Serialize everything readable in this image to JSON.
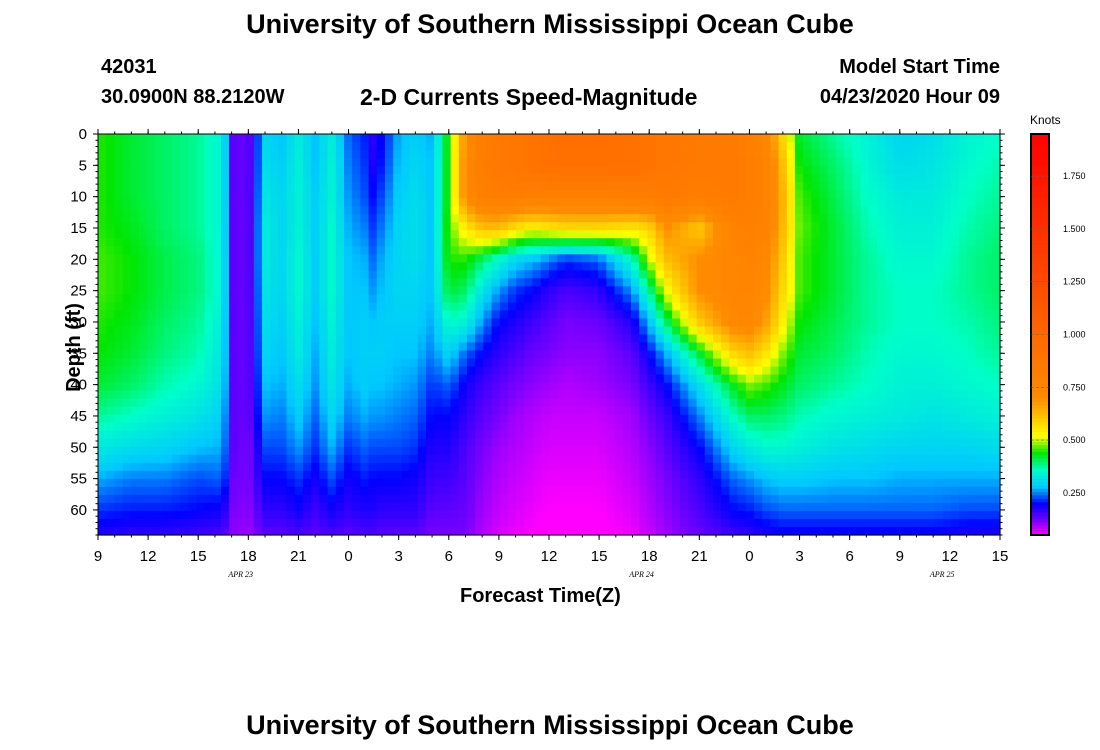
{
  "page": {
    "title_top": "University of Southern Mississippi Ocean Cube",
    "title_bottom": "University of Southern Mississippi Ocean Cube",
    "station_id": "42031",
    "location": "30.0900N 88.2120W",
    "subtitle": "2-D Currents Speed-Magnitude",
    "model_start_label": "Model Start Time",
    "model_start_value": "04/23/2020 Hour 09"
  },
  "chart_data": {
    "type": "heatmap",
    "title": "2-D Currents Speed-Magnitude",
    "xlabel": "Forecast Time(Z)",
    "ylabel": "Depth (ft)",
    "x_tick_labels": [
      "9",
      "12",
      "15",
      "18",
      "21",
      "0",
      "3",
      "6",
      "9",
      "12",
      "15",
      "18",
      "21",
      "0",
      "3",
      "6",
      "9",
      "12",
      "15"
    ],
    "x_date_labels": [
      {
        "label": "APR  23",
        "tick_index": 3
      },
      {
        "label": "APR  24",
        "tick_index": 11
      },
      {
        "label": "APR  25",
        "tick_index": 17
      }
    ],
    "y_tick_labels": [
      "0",
      "5",
      "10",
      "15",
      "20",
      "25",
      "30",
      "35",
      "40",
      "45",
      "50",
      "55",
      "60"
    ],
    "ylim": [
      0,
      64
    ],
    "xlim_hours": [
      0,
      54
    ],
    "colorbar": {
      "title": "Knots",
      "ticks": [
        "0.250",
        "0.500",
        "0.750",
        "1.000",
        "1.250",
        "1.500",
        "1.750"
      ],
      "range": [
        0.05,
        1.95
      ]
    },
    "profile_hours": [
      0,
      2,
      4,
      6,
      7.5,
      8,
      9,
      10,
      11,
      12,
      13,
      14,
      15,
      16,
      16.5,
      17,
      18,
      19,
      20,
      21,
      22,
      23,
      24,
      25,
      26,
      27,
      28,
      30,
      32,
      33,
      34,
      36,
      38,
      39,
      40,
      41,
      42,
      44,
      46,
      48,
      50,
      52,
      54
    ],
    "profile_depths": [
      0,
      5,
      10,
      15,
      20,
      25,
      30,
      35,
      40,
      45,
      50,
      55,
      60,
      64
    ],
    "speed_knots": [
      [
        0.45,
        0.45,
        0.45,
        0.45,
        0.46,
        0.46,
        0.45,
        0.44,
        0.42,
        0.38,
        0.33,
        0.27,
        0.22,
        0.18
      ],
      [
        0.42,
        0.42,
        0.42,
        0.43,
        0.44,
        0.44,
        0.43,
        0.42,
        0.4,
        0.36,
        0.31,
        0.25,
        0.21,
        0.17
      ],
      [
        0.4,
        0.4,
        0.4,
        0.4,
        0.41,
        0.41,
        0.4,
        0.39,
        0.37,
        0.34,
        0.3,
        0.25,
        0.21,
        0.17
      ],
      [
        0.38,
        0.38,
        0.38,
        0.38,
        0.39,
        0.39,
        0.38,
        0.37,
        0.35,
        0.32,
        0.28,
        0.23,
        0.2,
        0.16
      ],
      [
        0.34,
        0.34,
        0.34,
        0.34,
        0.34,
        0.34,
        0.33,
        0.32,
        0.31,
        0.29,
        0.27,
        0.24,
        0.19,
        0.15
      ],
      [
        0.14,
        0.14,
        0.14,
        0.14,
        0.14,
        0.14,
        0.14,
        0.14,
        0.14,
        0.14,
        0.14,
        0.13,
        0.12,
        0.11
      ],
      [
        0.13,
        0.13,
        0.13,
        0.13,
        0.13,
        0.13,
        0.13,
        0.13,
        0.13,
        0.13,
        0.12,
        0.12,
        0.11,
        0.1
      ],
      [
        0.3,
        0.31,
        0.32,
        0.33,
        0.33,
        0.32,
        0.31,
        0.3,
        0.28,
        0.26,
        0.23,
        0.2,
        0.17,
        0.14
      ],
      [
        0.28,
        0.29,
        0.3,
        0.3,
        0.3,
        0.3,
        0.29,
        0.28,
        0.27,
        0.25,
        0.23,
        0.2,
        0.17,
        0.14
      ],
      [
        0.33,
        0.34,
        0.34,
        0.34,
        0.35,
        0.35,
        0.34,
        0.33,
        0.31,
        0.29,
        0.26,
        0.22,
        0.19,
        0.15
      ],
      [
        0.28,
        0.28,
        0.29,
        0.29,
        0.29,
        0.29,
        0.28,
        0.27,
        0.26,
        0.24,
        0.22,
        0.19,
        0.16,
        0.14
      ],
      [
        0.33,
        0.34,
        0.34,
        0.35,
        0.35,
        0.35,
        0.34,
        0.33,
        0.32,
        0.3,
        0.27,
        0.23,
        0.19,
        0.15
      ],
      [
        0.24,
        0.25,
        0.26,
        0.27,
        0.28,
        0.28,
        0.28,
        0.28,
        0.27,
        0.25,
        0.22,
        0.19,
        0.17,
        0.14
      ],
      [
        0.21,
        0.22,
        0.23,
        0.25,
        0.27,
        0.28,
        0.29,
        0.29,
        0.29,
        0.27,
        0.24,
        0.21,
        0.18,
        0.15
      ],
      [
        0.17,
        0.18,
        0.2,
        0.22,
        0.24,
        0.26,
        0.28,
        0.29,
        0.28,
        0.26,
        0.23,
        0.2,
        0.18,
        0.15
      ],
      [
        0.2,
        0.21,
        0.23,
        0.25,
        0.27,
        0.28,
        0.29,
        0.29,
        0.28,
        0.26,
        0.23,
        0.2,
        0.17,
        0.14
      ],
      [
        0.27,
        0.28,
        0.29,
        0.3,
        0.3,
        0.3,
        0.29,
        0.28,
        0.27,
        0.25,
        0.23,
        0.2,
        0.17,
        0.14
      ],
      [
        0.29,
        0.3,
        0.31,
        0.31,
        0.31,
        0.3,
        0.29,
        0.28,
        0.26,
        0.24,
        0.22,
        0.19,
        0.17,
        0.14
      ],
      [
        0.27,
        0.28,
        0.28,
        0.28,
        0.28,
        0.28,
        0.27,
        0.25,
        0.22,
        0.2,
        0.18,
        0.16,
        0.14,
        0.12
      ],
      [
        0.45,
        0.45,
        0.45,
        0.46,
        0.45,
        0.42,
        0.36,
        0.3,
        0.24,
        0.2,
        0.18,
        0.16,
        0.14,
        0.12
      ],
      [
        0.7,
        0.72,
        0.72,
        0.55,
        0.45,
        0.4,
        0.34,
        0.24,
        0.19,
        0.17,
        0.15,
        0.14,
        0.13,
        0.12
      ],
      [
        0.82,
        0.83,
        0.8,
        0.62,
        0.4,
        0.32,
        0.26,
        0.2,
        0.16,
        0.14,
        0.12,
        0.11,
        0.1,
        0.09
      ],
      [
        0.85,
        0.86,
        0.82,
        0.62,
        0.35,
        0.26,
        0.2,
        0.17,
        0.14,
        0.12,
        0.1,
        0.09,
        0.08,
        0.07
      ],
      [
        0.88,
        0.88,
        0.82,
        0.57,
        0.3,
        0.22,
        0.18,
        0.15,
        0.12,
        0.1,
        0.09,
        0.08,
        0.07,
        0.06
      ],
      [
        0.9,
        0.9,
        0.8,
        0.54,
        0.28,
        0.2,
        0.16,
        0.13,
        0.11,
        0.09,
        0.08,
        0.07,
        0.06,
        0.05
      ],
      [
        0.93,
        0.92,
        0.8,
        0.56,
        0.25,
        0.17,
        0.14,
        0.12,
        0.1,
        0.08,
        0.07,
        0.06,
        0.05,
        0.04
      ],
      [
        0.95,
        0.93,
        0.8,
        0.58,
        0.22,
        0.15,
        0.12,
        0.11,
        0.09,
        0.08,
        0.07,
        0.06,
        0.05,
        0.04
      ],
      [
        0.95,
        0.93,
        0.8,
        0.58,
        0.24,
        0.17,
        0.13,
        0.11,
        0.1,
        0.08,
        0.07,
        0.06,
        0.05,
        0.04
      ],
      [
        0.93,
        0.92,
        0.82,
        0.56,
        0.36,
        0.26,
        0.18,
        0.14,
        0.12,
        0.1,
        0.09,
        0.08,
        0.07,
        0.06
      ],
      [
        0.9,
        0.9,
        0.82,
        0.58,
        0.5,
        0.38,
        0.28,
        0.2,
        0.16,
        0.13,
        0.11,
        0.1,
        0.09,
        0.08
      ],
      [
        0.88,
        0.88,
        0.85,
        0.7,
        0.62,
        0.52,
        0.4,
        0.27,
        0.2,
        0.16,
        0.14,
        0.12,
        0.11,
        0.1
      ],
      [
        0.85,
        0.85,
        0.82,
        0.6,
        0.7,
        0.7,
        0.6,
        0.42,
        0.31,
        0.25,
        0.2,
        0.17,
        0.15,
        0.13
      ],
      [
        0.84,
        0.85,
        0.85,
        0.78,
        0.75,
        0.75,
        0.73,
        0.58,
        0.43,
        0.36,
        0.3,
        0.24,
        0.2,
        0.16
      ],
      [
        0.8,
        0.82,
        0.82,
        0.8,
        0.78,
        0.76,
        0.74,
        0.62,
        0.48,
        0.4,
        0.33,
        0.26,
        0.21,
        0.17
      ],
      [
        0.75,
        0.78,
        0.78,
        0.77,
        0.74,
        0.71,
        0.67,
        0.56,
        0.46,
        0.4,
        0.35,
        0.28,
        0.23,
        0.18
      ],
      [
        0.58,
        0.62,
        0.64,
        0.63,
        0.6,
        0.58,
        0.54,
        0.48,
        0.43,
        0.39,
        0.35,
        0.29,
        0.24,
        0.19
      ],
      [
        0.42,
        0.44,
        0.46,
        0.47,
        0.46,
        0.46,
        0.44,
        0.42,
        0.4,
        0.37,
        0.34,
        0.29,
        0.24,
        0.19
      ],
      [
        0.38,
        0.4,
        0.41,
        0.42,
        0.42,
        0.42,
        0.41,
        0.4,
        0.38,
        0.35,
        0.32,
        0.28,
        0.24,
        0.19
      ],
      [
        0.34,
        0.35,
        0.36,
        0.37,
        0.38,
        0.38,
        0.38,
        0.37,
        0.36,
        0.34,
        0.31,
        0.28,
        0.24,
        0.19
      ],
      [
        0.3,
        0.31,
        0.33,
        0.34,
        0.35,
        0.36,
        0.36,
        0.35,
        0.34,
        0.33,
        0.3,
        0.27,
        0.24,
        0.19
      ],
      [
        0.31,
        0.32,
        0.33,
        0.34,
        0.35,
        0.36,
        0.36,
        0.35,
        0.34,
        0.32,
        0.3,
        0.27,
        0.24,
        0.19
      ],
      [
        0.34,
        0.35,
        0.36,
        0.37,
        0.38,
        0.38,
        0.37,
        0.36,
        0.35,
        0.33,
        0.3,
        0.27,
        0.23,
        0.18
      ],
      [
        0.36,
        0.37,
        0.38,
        0.39,
        0.4,
        0.4,
        0.39,
        0.38,
        0.36,
        0.34,
        0.31,
        0.27,
        0.23,
        0.18
      ]
    ]
  }
}
